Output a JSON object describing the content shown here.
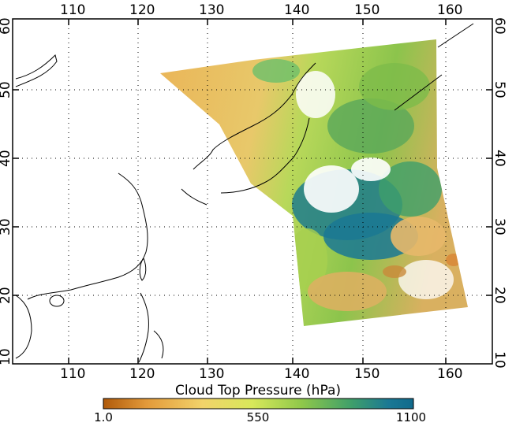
{
  "map": {
    "x_axis": {
      "ticks": [
        "110",
        "120",
        "130",
        "140",
        "150",
        "160"
      ]
    },
    "y_axis": {
      "ticks": [
        "10",
        "20",
        "30",
        "40",
        "50",
        "60"
      ]
    },
    "grid": "dotted",
    "swath_shown": true
  },
  "colorbar": {
    "title": "Cloud Top Pressure (hPa)",
    "min_label": "1.0",
    "mid_label": "550",
    "max_label": "1100",
    "colors": [
      "#b05a0a",
      "#e39a3a",
      "#f2d36a",
      "#d8e85a",
      "#8fc84a",
      "#3f9f6a",
      "#1a7894",
      "#116a8c"
    ]
  }
}
